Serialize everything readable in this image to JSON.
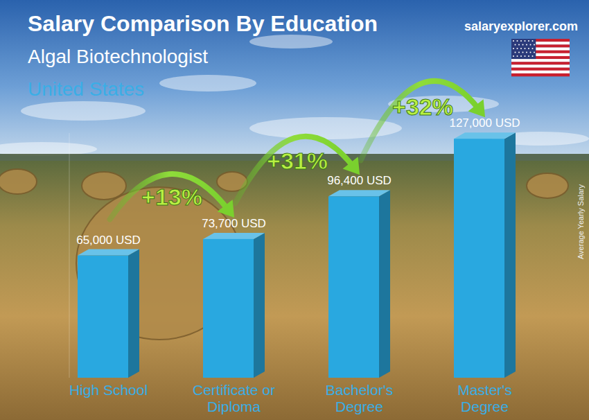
{
  "chart_data": {
    "type": "bar",
    "title": "Salary Comparison By Education",
    "subtitle": "Algal Biotechnologist",
    "country": "United States",
    "source": "salaryexplorer.com",
    "y_label": "Average Yearly Salary",
    "categories": [
      "High School",
      "Certificate or Diploma",
      "Bachelor's Degree",
      "Master's Degree"
    ],
    "values": [
      65000,
      73700,
      96400,
      127000
    ],
    "value_labels": [
      "65,000 USD",
      "73,700 USD",
      "96,400 USD",
      "127,000 USD"
    ],
    "annotations": [
      "+13%",
      "+31%",
      "+32%"
    ],
    "color": "#29a8e0",
    "ylim": [
      0,
      130000
    ],
    "data_labels": true,
    "tick_labels": false,
    "grid": false
  }
}
